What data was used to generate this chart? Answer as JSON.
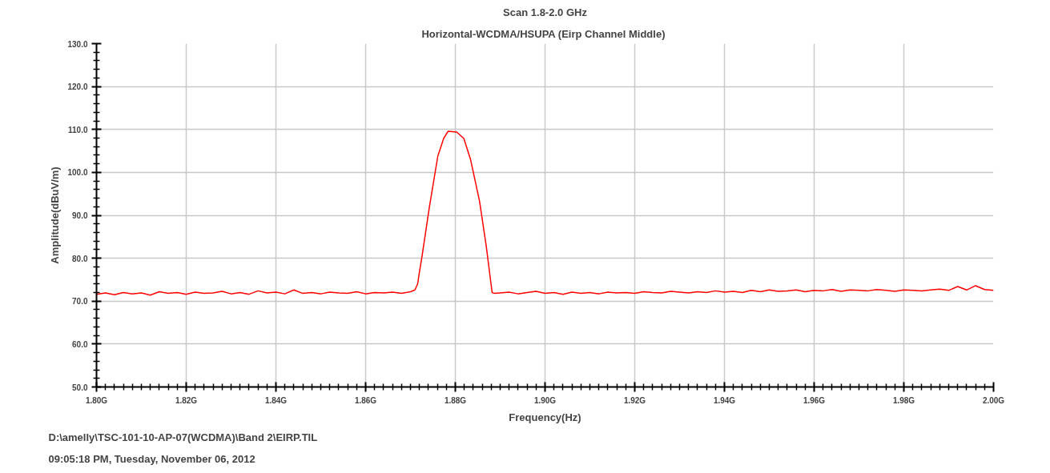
{
  "chart_data": {
    "type": "line",
    "title": "Scan 1.8-2.0 GHz",
    "subtitle": "Horizontal-WCDMA/HSUPA  (Eirp Channel Middle)",
    "xlabel": "Frequency(Hz)",
    "ylabel": "Amplitude(dBuV/m)",
    "annotations": [
      "D:\\amelly\\TSC-101-10-AP-07(WCDMA)\\Band 2\\EIRP.TIL",
      "09:05:18 PM, Tuesday, November 06, 2012"
    ],
    "xlim": [
      1.8,
      2.0
    ],
    "ylim": [
      50,
      130
    ],
    "xticks": [
      {
        "value": 1.8,
        "label": "1.80G"
      },
      {
        "value": 1.82,
        "label": "1.82G"
      },
      {
        "value": 1.84,
        "label": "1.84G"
      },
      {
        "value": 1.86,
        "label": "1.86G"
      },
      {
        "value": 1.88,
        "label": "1.88G"
      },
      {
        "value": 1.9,
        "label": "1.90G"
      },
      {
        "value": 1.92,
        "label": "1.92G"
      },
      {
        "value": 1.94,
        "label": "1.94G"
      },
      {
        "value": 1.96,
        "label": "1.96G"
      },
      {
        "value": 1.98,
        "label": "1.98G"
      },
      {
        "value": 2.0,
        "label": "2.00G"
      }
    ],
    "yticks": [
      {
        "value": 50,
        "label": "50.0"
      },
      {
        "value": 60,
        "label": "60.0"
      },
      {
        "value": 70,
        "label": "70.0"
      },
      {
        "value": 80,
        "label": "80.0"
      },
      {
        "value": 90,
        "label": "90.0"
      },
      {
        "value": 100,
        "label": "100.0"
      },
      {
        "value": 110,
        "label": "110.0"
      },
      {
        "value": 120,
        "label": "120.0"
      },
      {
        "value": 130,
        "label": "130.0"
      }
    ],
    "grid": true,
    "marker": "none",
    "line_style": "solid",
    "series": [
      {
        "color": "#ff0000",
        "x": [
          1.8,
          1.802,
          1.804,
          1.806,
          1.808,
          1.81,
          1.812,
          1.814,
          1.816,
          1.818,
          1.82,
          1.822,
          1.824,
          1.826,
          1.828,
          1.83,
          1.832,
          1.834,
          1.836,
          1.838,
          1.84,
          1.842,
          1.844,
          1.846,
          1.848,
          1.85,
          1.852,
          1.854,
          1.856,
          1.858,
          1.86,
          1.862,
          1.864,
          1.866,
          1.868,
          1.87,
          1.871,
          1.8716,
          1.872,
          1.8726,
          1.8742,
          1.8761,
          1.8774,
          1.8784,
          1.8803,
          1.8819,
          1.8834,
          1.8854,
          1.8869,
          1.8882,
          1.8888,
          1.89,
          1.892,
          1.894,
          1.896,
          1.898,
          1.9,
          1.902,
          1.904,
          1.906,
          1.908,
          1.91,
          1.912,
          1.914,
          1.916,
          1.918,
          1.92,
          1.922,
          1.924,
          1.926,
          1.928,
          1.93,
          1.932,
          1.934,
          1.936,
          1.938,
          1.94,
          1.942,
          1.944,
          1.946,
          1.948,
          1.95,
          1.952,
          1.954,
          1.956,
          1.958,
          1.96,
          1.962,
          1.964,
          1.966,
          1.968,
          1.97,
          1.972,
          1.974,
          1.976,
          1.978,
          1.98,
          1.982,
          1.984,
          1.986,
          1.988,
          1.99,
          1.992,
          1.994,
          1.996,
          1.998,
          2.0
        ],
        "values": [
          71.6,
          71.9,
          71.5,
          72.0,
          71.7,
          71.9,
          71.4,
          72.2,
          71.8,
          72.0,
          71.6,
          72.1,
          71.8,
          71.9,
          72.3,
          71.7,
          72.0,
          71.6,
          72.4,
          71.9,
          72.1,
          71.7,
          72.6,
          71.8,
          72.0,
          71.7,
          72.1,
          71.9,
          71.8,
          72.2,
          71.7,
          72.0,
          71.9,
          72.1,
          71.8,
          72.2,
          72.6,
          74.0,
          76.8,
          80.6,
          91.8,
          103.8,
          107.9,
          109.6,
          109.4,
          107.9,
          103.0,
          93.3,
          82.8,
          72.0,
          71.8,
          71.9,
          72.1,
          71.7,
          72.0,
          72.3,
          71.8,
          72.0,
          71.6,
          72.1,
          71.8,
          72.0,
          71.7,
          72.1,
          71.9,
          72.0,
          71.8,
          72.2,
          72.0,
          71.9,
          72.3,
          72.1,
          71.9,
          72.2,
          72.0,
          72.4,
          72.1,
          72.3,
          72.0,
          72.5,
          72.2,
          72.6,
          72.3,
          72.4,
          72.6,
          72.2,
          72.5,
          72.4,
          72.7,
          72.3,
          72.6,
          72.5,
          72.4,
          72.7,
          72.5,
          72.3,
          72.6,
          72.5,
          72.4,
          72.6,
          72.8,
          72.5,
          73.4,
          72.6,
          73.6,
          72.7,
          72.5
        ]
      }
    ]
  }
}
